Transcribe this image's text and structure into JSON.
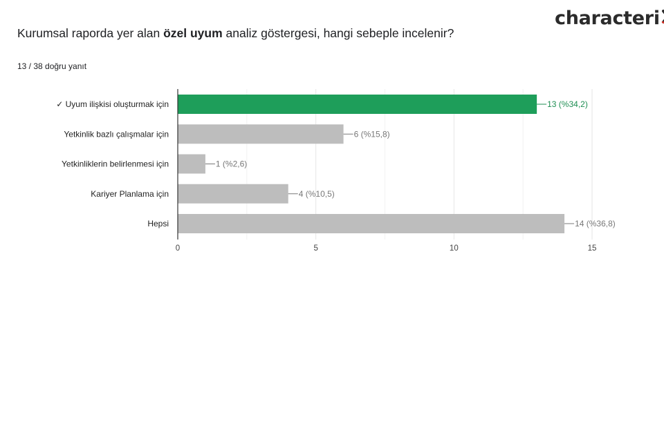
{
  "header": {
    "logo_text": "characteri",
    "logo_mark": "x",
    "logo_mark_color": "#d93025",
    "question_before": "Kurumsal raporda yer alan ",
    "question_bold": "özel uyum",
    "question_after": " analiz göstergesi, hangi sebeple incelenir?",
    "summary": "13 / 38 doğru yanıt"
  },
  "chart_data": {
    "type": "bar",
    "orientation": "horizontal",
    "categories": [
      "✓ Uyum ilişkisi oluşturmak için",
      "Yetkinlik bazlı çalışmalar için",
      "Yetkinliklerin belirlenmesi için",
      "Kariyer Planlama için",
      "Hepsi"
    ],
    "values": [
      13,
      6,
      1,
      4,
      14
    ],
    "value_labels": [
      "13 (%34,2)",
      "6 (%15,8)",
      "1 (%2,6)",
      "4 (%10,5)",
      "14 (%36,8)"
    ],
    "correct_index": 0,
    "xlim": [
      0,
      15
    ],
    "xticks": [
      "0",
      "5",
      "10",
      "15"
    ],
    "grid": true,
    "colors": {
      "correct_bar": "#1e9e5a",
      "other_bar": "#bdbdbd",
      "correct_label": "#1e8e52",
      "other_label": "#777777",
      "grid": "#e6e6e6",
      "axis": "#333333"
    }
  }
}
